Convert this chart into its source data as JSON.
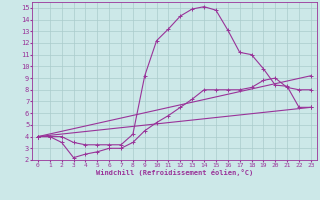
{
  "xlabel": "Windchill (Refroidissement éolien,°C)",
  "background_color": "#cce8e8",
  "line_color": "#993399",
  "grid_color": "#aacccc",
  "xlim": [
    -0.5,
    23.5
  ],
  "ylim": [
    2,
    15.5
  ],
  "xticks": [
    0,
    1,
    2,
    3,
    4,
    5,
    6,
    7,
    8,
    9,
    10,
    11,
    12,
    13,
    14,
    15,
    16,
    17,
    18,
    19,
    20,
    21,
    22,
    23
  ],
  "yticks": [
    2,
    3,
    4,
    5,
    6,
    7,
    8,
    9,
    10,
    11,
    12,
    13,
    14,
    15
  ],
  "curve1_x": [
    0,
    1,
    2,
    3,
    4,
    5,
    6,
    7,
    8,
    9,
    10,
    11,
    12,
    13,
    14,
    15,
    16,
    17,
    18,
    19,
    20,
    21,
    22,
    23
  ],
  "curve1_y": [
    4.0,
    4.0,
    4.0,
    3.5,
    3.3,
    3.3,
    3.3,
    3.3,
    4.2,
    9.2,
    12.2,
    13.2,
    14.3,
    14.9,
    15.1,
    14.8,
    13.1,
    11.2,
    11.0,
    9.8,
    8.4,
    8.3,
    6.5,
    6.5
  ],
  "curve2_x": [
    0,
    1,
    2,
    3,
    4,
    5,
    6,
    7,
    8,
    9,
    10,
    11,
    12,
    13,
    14,
    15,
    16,
    17,
    18,
    19,
    20,
    21,
    22,
    23
  ],
  "curve2_y": [
    4.0,
    4.0,
    3.5,
    2.2,
    2.5,
    2.7,
    3.0,
    3.0,
    3.5,
    4.5,
    5.2,
    5.8,
    6.5,
    7.2,
    8.0,
    8.0,
    8.0,
    8.0,
    8.2,
    8.8,
    9.0,
    8.2,
    8.0,
    8.0
  ],
  "curve3_x": [
    0,
    23
  ],
  "curve3_y": [
    4.0,
    6.5
  ],
  "curve4_x": [
    0,
    23
  ],
  "curve4_y": [
    4.0,
    9.2
  ]
}
